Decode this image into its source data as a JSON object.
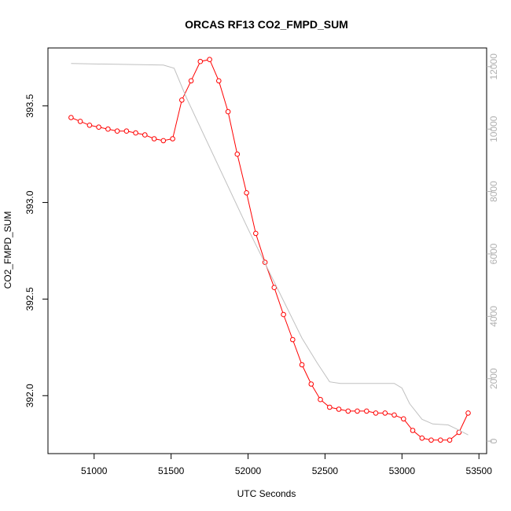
{
  "chart_data": {
    "type": "line",
    "title": "ORCAS RF13 CO2_FMPD_SUM",
    "xlabel": "UTC Seconds",
    "ylabel": "CO2_FMPD_SUM",
    "xlim": [
      50700,
      53550
    ],
    "ylim": [
      391.7,
      393.8
    ],
    "x_ticks": [
      51000,
      51500,
      52000,
      52500,
      53000,
      53500
    ],
    "x_tick_labels": [
      "51000",
      "51500",
      "52000",
      "52500",
      "53000",
      "53500"
    ],
    "y_ticks": [
      392.0,
      392.5,
      393.0,
      393.5
    ],
    "y_tick_labels": [
      "392.0",
      "392.5",
      "393.0",
      "393.5"
    ],
    "y2lim": [
      -400,
      12600
    ],
    "y2_ticks": [
      0,
      2000,
      4000,
      6000,
      8000,
      10000,
      12000
    ],
    "y2_tick_labels": [
      "0",
      "2000",
      "4000",
      "6000",
      "8000",
      "10000",
      "12000"
    ],
    "grid": false,
    "series": [
      {
        "color": "#ff0000",
        "axis": "left",
        "style": "line+open-circles",
        "x": [
          50850,
          50910,
          50970,
          51030,
          51090,
          51150,
          51210,
          51270,
          51330,
          51390,
          51450,
          51510,
          51570,
          51630,
          51690,
          51750,
          51810,
          51870,
          51930,
          51990,
          52050,
          52110,
          52170,
          52230,
          52290,
          52350,
          52410,
          52470,
          52530,
          52590,
          52650,
          52710,
          52770,
          52830,
          52890,
          52950,
          53010,
          53070,
          53130,
          53190,
          53250,
          53310,
          53370,
          53430
        ],
        "y": [
          393.44,
          393.42,
          393.4,
          393.39,
          393.38,
          393.37,
          393.37,
          393.36,
          393.35,
          393.33,
          393.32,
          393.33,
          393.53,
          393.63,
          393.73,
          393.74,
          393.63,
          393.47,
          393.25,
          393.05,
          392.84,
          392.69,
          392.56,
          392.42,
          392.29,
          392.16,
          392.06,
          391.98,
          391.94,
          391.93,
          391.92,
          391.92,
          391.92,
          391.91,
          391.91,
          391.9,
          391.88,
          391.82,
          391.78,
          391.77,
          391.77,
          391.77,
          391.81,
          391.91
        ]
      },
      {
        "color": "#c0c0c0",
        "axis": "right",
        "style": "line",
        "x": [
          50850,
          51450,
          51520,
          51600,
          52000,
          52350,
          52450,
          52530,
          52600,
          52700,
          52800,
          52900,
          52950,
          53000,
          53050,
          53130,
          53200,
          53300,
          53350,
          53430
        ],
        "y": [
          12100,
          12050,
          11950,
          11000,
          6800,
          3300,
          2500,
          1900,
          1850,
          1850,
          1850,
          1850,
          1850,
          1700,
          1200,
          700,
          550,
          520,
          400,
          200
        ]
      }
    ]
  }
}
